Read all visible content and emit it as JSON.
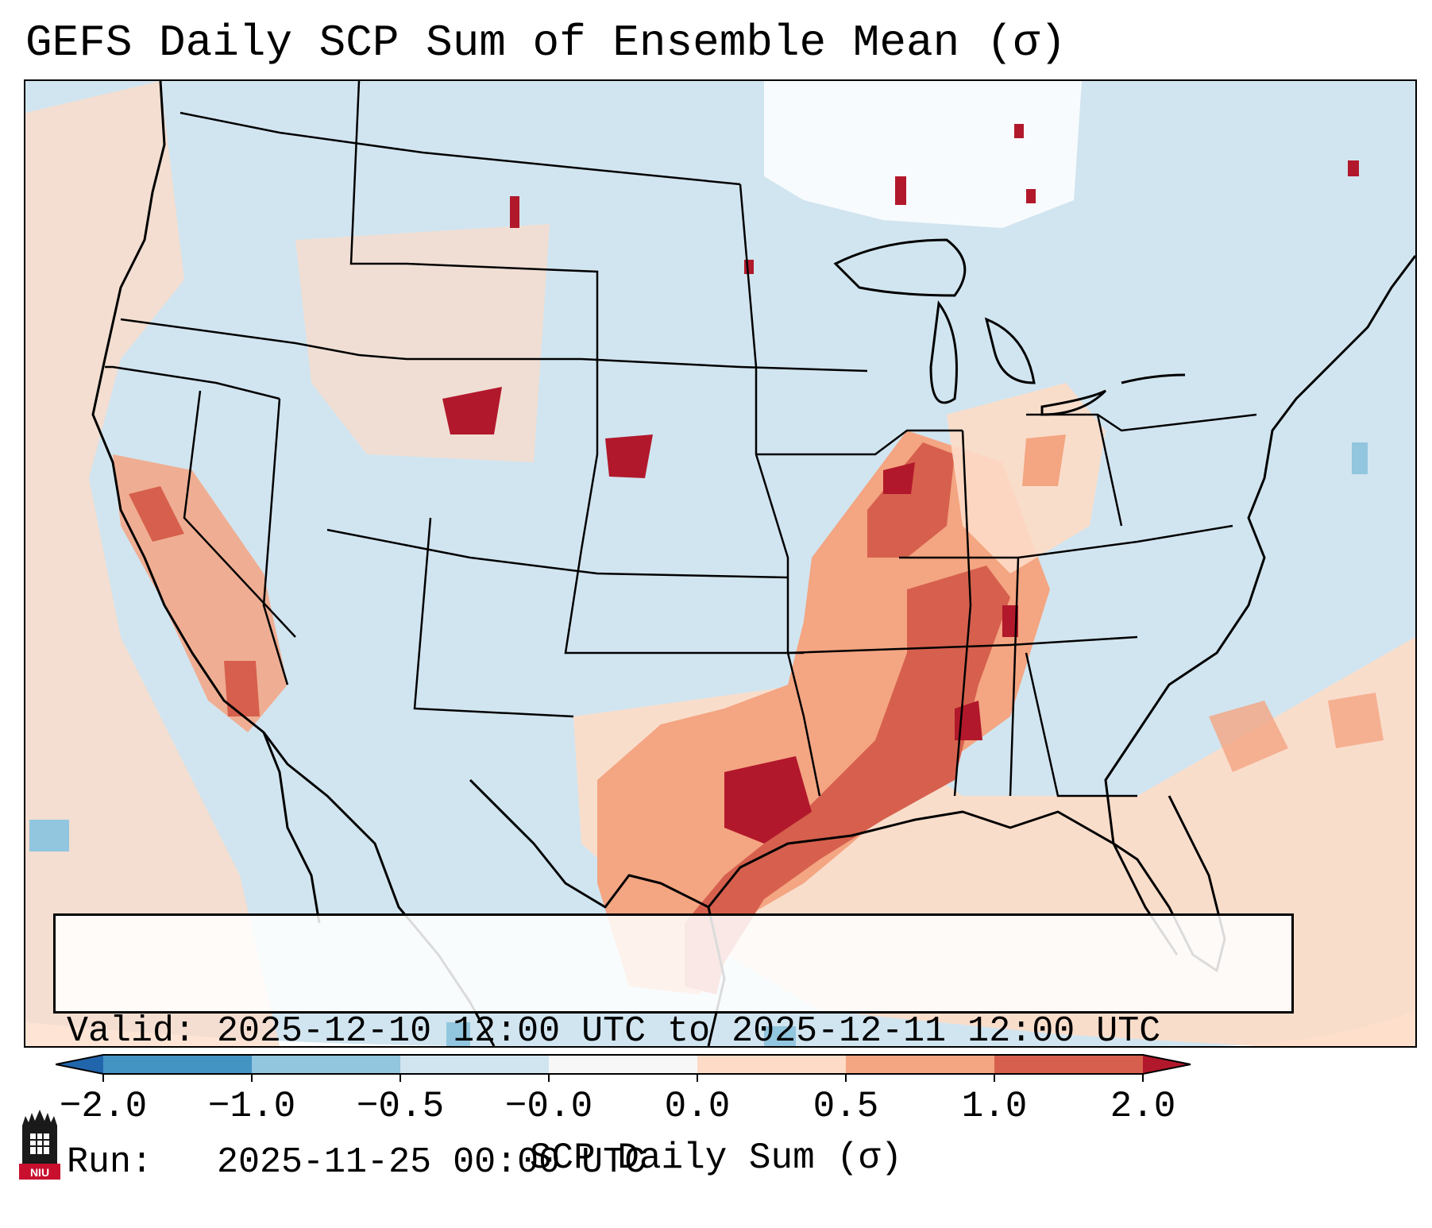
{
  "title": "GEFS Daily SCP Sum of Ensemble Mean (σ)",
  "info": {
    "valid_line": "Valid: 2025-12-10 12:00 UTC to 2025-12-11 12:00 UTC",
    "run_line": "Run:   2025-11-25 00:00 UTC"
  },
  "colorbar": {
    "label": "SCP Daily Sum (σ)",
    "ticks": [
      "−2.0",
      "−1.0",
      "−0.5",
      "−0.0",
      "0.0",
      "0.5",
      "1.0",
      "2.0"
    ],
    "colors": [
      "#4393c3",
      "#92c5de",
      "#d1e5f0",
      "#f7f7f7",
      "#fddbc7",
      "#f4a582",
      "#d6604d",
      "#b2182b"
    ],
    "extend": "both"
  },
  "map": {
    "region": "Continental United States",
    "projection": "Lambert Conformal"
  },
  "logo": {
    "text": "NIU",
    "accent_color": "#c8102e"
  }
}
